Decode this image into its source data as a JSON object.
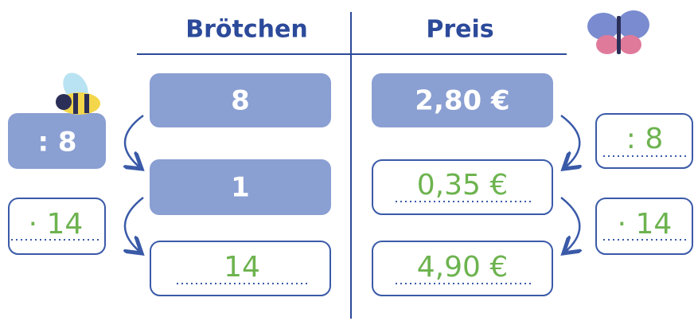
{
  "header": {
    "left": "Brötchen",
    "right": "Preis"
  },
  "rows": [
    [
      "8",
      "2,80 €"
    ],
    [
      "1",
      "0,35 €"
    ],
    [
      "14",
      "4,90 €"
    ]
  ],
  "operators": {
    "left": [
      ": 8",
      "· 14"
    ],
    "right": [
      ": 8",
      "· 14"
    ]
  }
}
